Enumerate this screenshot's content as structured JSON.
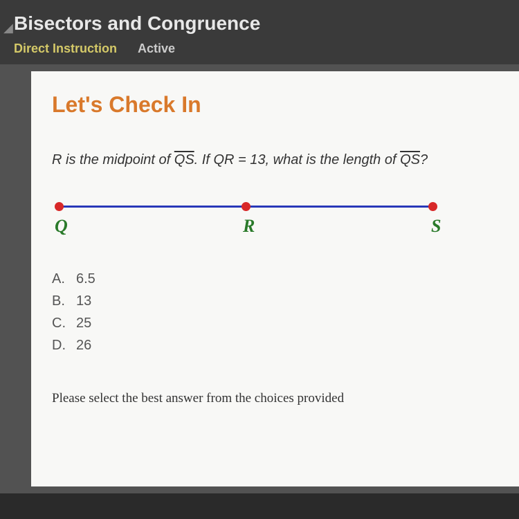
{
  "header": {
    "title": "Bisectors and Congruence",
    "tabs": [
      {
        "label": "Direct Instruction",
        "active": true
      },
      {
        "label": "Active",
        "active": false
      }
    ]
  },
  "content": {
    "section_title": "Let's Check In",
    "question": {
      "prefix": "R",
      "text1": " is the midpoint of ",
      "segment1": "QS",
      "text2": ". If ",
      "var1": "QR",
      "text3": " = ",
      "value": "13",
      "text4": ", what is the length of ",
      "segment2": "QS",
      "text5": "?"
    },
    "diagram": {
      "points": [
        {
          "label": "Q",
          "position": "q"
        },
        {
          "label": "R",
          "position": "r"
        },
        {
          "label": "S",
          "position": "s"
        }
      ],
      "colors": {
        "line": "#2838b8",
        "point": "#d82828",
        "label": "#2a7a2a"
      }
    },
    "choices": [
      {
        "letter": "A.",
        "value": "6.5"
      },
      {
        "letter": "B.",
        "value": "13"
      },
      {
        "letter": "C.",
        "value": "25"
      },
      {
        "letter": "D.",
        "value": "26"
      }
    ],
    "instruction": "Please select the best answer from the choices provided"
  },
  "styling": {
    "header_bg": "#3a3a3a",
    "content_bg": "#f8f8f6",
    "section_title_color": "#d9792b",
    "active_tab_color": "#d4c968"
  }
}
